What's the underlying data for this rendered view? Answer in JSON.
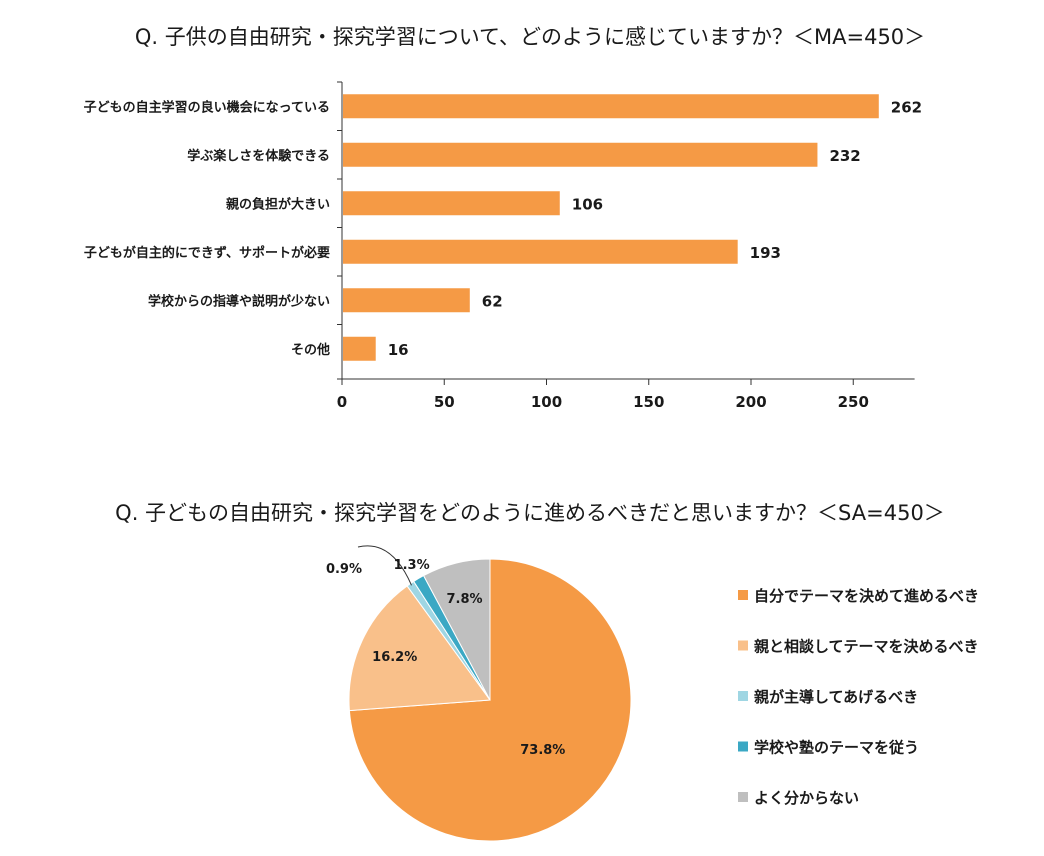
{
  "chart_data": [
    {
      "type": "bar",
      "orientation": "horizontal",
      "title": "Q. 子供の自由研究・探究学習について、どのように感じていますか？＜MA=450＞",
      "categories": [
        "子どもの自主学習の良い機会になっている",
        "学ぶ楽しさを体験できる",
        "親の負担が大きい",
        "子どもが自主的にできず、サポートが必要",
        "学校からの指導や説明が少ない",
        "その他"
      ],
      "values": [
        262,
        232,
        106,
        193,
        62,
        16
      ],
      "xlim": [
        0,
        280
      ],
      "xticks": [
        0,
        50,
        100,
        150,
        200,
        250
      ],
      "color": "#F59A45",
      "grid": false
    },
    {
      "type": "pie",
      "title": "Q. 子どもの自由研究・探究学習をどのように進めるべきだと思いますか？＜SA=450＞",
      "labels": [
        "自分でテーマを決めて進めるべき",
        "親と相談してテーマを決めるべき",
        "親が主導してあげるべき",
        "学校や塾のテーマを従う",
        "よく分からない"
      ],
      "values": [
        73.8,
        16.2,
        0.9,
        1.3,
        7.8
      ],
      "value_labels": [
        "73.8%",
        "16.2%",
        "0.9%",
        "1.3%",
        "7.8%"
      ],
      "colors": [
        "#F59A45",
        "#F9C08A",
        "#9FD6E3",
        "#3BA8C4",
        "#BFBFBF"
      ],
      "legend_position": "right"
    }
  ]
}
